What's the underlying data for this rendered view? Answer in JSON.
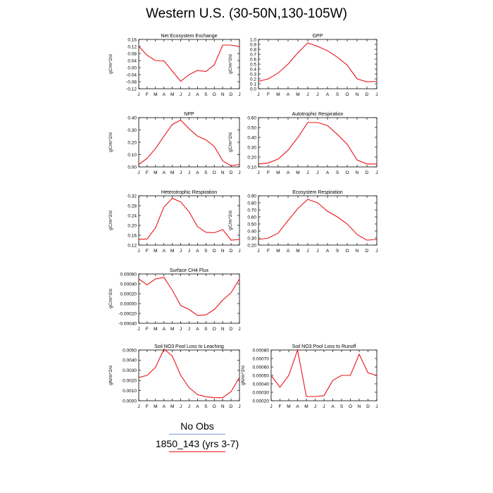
{
  "title": "Western U.S. (30-50N,130-105W)",
  "months": [
    "J",
    "F",
    "M",
    "A",
    "M",
    "J",
    "J",
    "A",
    "S",
    "O",
    "N",
    "D",
    "J"
  ],
  "line_color": "#e8151b",
  "legend": {
    "items": [
      {
        "label": "No Obs",
        "color": "#7f9fd6"
      },
      {
        "label": "1850_143 (yrs 3-7)",
        "color": "#e8151b"
      }
    ]
  },
  "chart_data": [
    {
      "type": "line",
      "title": "Net Ecosystem Exchange",
      "ylabel": "gC/m^2/d",
      "yticks": [
        "-0.12",
        "-0.08",
        "-0.04",
        "0.00",
        "0.04",
        "0.08",
        "0.12",
        "0.16"
      ],
      "ylim": [
        -0.12,
        0.16
      ],
      "values": [
        0.12,
        0.07,
        0.04,
        0.038,
        -0.02,
        -0.078,
        -0.04,
        -0.016,
        -0.022,
        0.016,
        0.128,
        0.128,
        0.12
      ]
    },
    {
      "type": "line",
      "title": "GPP",
      "ylabel": "gC/m^2/d",
      "yticks": [
        "0.0",
        "0.1",
        "0.2",
        "0.3",
        "0.4",
        "0.5",
        "0.6",
        "0.7",
        "0.8",
        "0.9",
        "1.0"
      ],
      "ylim": [
        0,
        1.0
      ],
      "values": [
        0.15,
        0.2,
        0.32,
        0.5,
        0.73,
        0.93,
        0.86,
        0.77,
        0.64,
        0.48,
        0.2,
        0.14,
        0.15
      ]
    },
    {
      "type": "line",
      "title": "NPP",
      "ylabel": "gC/m^2/d",
      "yticks": [
        "0.00",
        "0.10",
        "0.20",
        "0.30",
        "0.40"
      ],
      "ylim": [
        0,
        0.4
      ],
      "values": [
        0.02,
        0.07,
        0.15,
        0.25,
        0.345,
        0.38,
        0.31,
        0.25,
        0.22,
        0.165,
        0.05,
        0.01,
        0.02
      ]
    },
    {
      "type": "line",
      "title": "Autotrophic Respiration",
      "ylabel": "gC/m^2/d",
      "yticks": [
        "0.10",
        "0.20",
        "0.30",
        "0.40",
        "0.50",
        "0.60"
      ],
      "ylim": [
        0.1,
        0.6
      ],
      "values": [
        0.13,
        0.14,
        0.18,
        0.27,
        0.4,
        0.55,
        0.55,
        0.52,
        0.43,
        0.33,
        0.17,
        0.13,
        0.13
      ]
    },
    {
      "type": "line",
      "title": "Heterotrophic Respiration",
      "ylabel": "gC/m^2/d",
      "yticks": [
        "0.12",
        "0.16",
        "0.20",
        "0.24",
        "0.28",
        "0.32"
      ],
      "ylim": [
        0.12,
        0.32
      ],
      "values": [
        0.143,
        0.145,
        0.19,
        0.275,
        0.31,
        0.295,
        0.255,
        0.195,
        0.172,
        0.17,
        0.183,
        0.14,
        0.143
      ]
    },
    {
      "type": "line",
      "title": "Ecosystem Respiration",
      "ylabel": "gC/m^2/d",
      "yticks": [
        "0.20",
        "0.30",
        "0.40",
        "0.50",
        "0.60",
        "0.70",
        "0.80",
        "0.90"
      ],
      "ylim": [
        0.2,
        0.9
      ],
      "values": [
        0.28,
        0.3,
        0.37,
        0.55,
        0.72,
        0.85,
        0.8,
        0.68,
        0.6,
        0.5,
        0.35,
        0.27,
        0.28
      ]
    },
    {
      "type": "line",
      "title": "Surface CH4 Flux",
      "ylabel": "gC/m^2/d",
      "yticks": [
        "-0.00040",
        "-0.00020",
        "0.00000",
        "0.00020",
        "0.00040",
        "0.00060"
      ],
      "ylim": [
        -0.0004,
        0.0006
      ],
      "values": [
        0.0005,
        0.00038,
        0.0005,
        0.00053,
        0.00027,
        -4e-05,
        -0.00012,
        -0.00024,
        -0.00023,
        -0.00012,
        7e-05,
        0.00022,
        0.0005
      ]
    },
    {
      "type": "line",
      "title": "Soil NO3 Pool Loss to Leaching",
      "ylabel": "gN/m^2/d",
      "yticks": [
        "0.0000",
        "0.0010",
        "0.0020",
        "0.0030",
        "0.0040",
        "0.0050"
      ],
      "ylim": [
        0,
        0.005
      ],
      "values": [
        0.0023,
        0.0025,
        0.0033,
        0.0051,
        0.0044,
        0.0025,
        0.0013,
        0.0006,
        0.0004,
        0.0003,
        0.0003,
        0.0009,
        0.0023
      ]
    },
    {
      "type": "line",
      "title": "Soil NO3 Pool Loss to Runoff",
      "ylabel": "gN/m^2/d",
      "yticks": [
        "0.00020",
        "0.00030",
        "0.00040",
        "0.00050",
        "0.00060",
        "0.00070",
        "0.00080"
      ],
      "ylim": [
        0.0002,
        0.0008
      ],
      "values": [
        0.0005,
        0.00036,
        0.0005,
        0.0008,
        0.00025,
        0.00025,
        0.00026,
        0.00044,
        0.0005,
        0.0005,
        0.00075,
        0.00053,
        0.0005
      ]
    }
  ]
}
